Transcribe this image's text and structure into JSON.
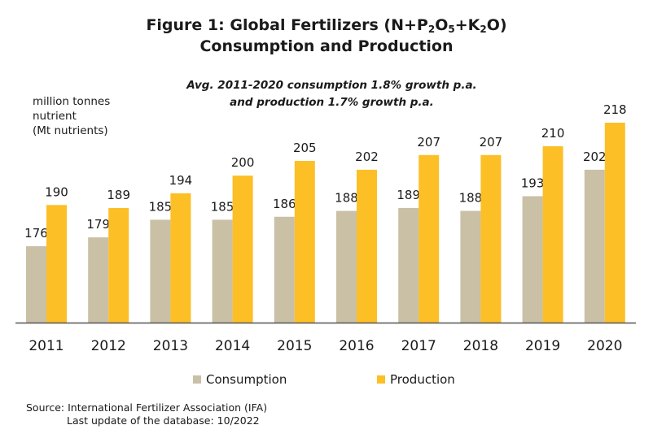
{
  "title": {
    "line1_prefix": "Figure 1: Global Fertilizers (N+P",
    "sub1": "2",
    "mid1": "O",
    "sub2": "5",
    "mid2": "+K",
    "sub3": "2",
    "line1_suffix": "O)",
    "line2": "Consumption  and Production"
  },
  "annotation": {
    "line1": "Avg. 2011-2020 consumption  1.8% growth p.a.",
    "line2": "and production 1.7% growth p.a."
  },
  "unit_label": {
    "line1": "million  tonnes",
    "line2": "nutrient",
    "line3": "(Mt nutrients)"
  },
  "chart_data": {
    "type": "bar",
    "categories": [
      "2011",
      "2012",
      "2013",
      "2014",
      "2015",
      "2016",
      "2017",
      "2018",
      "2019",
      "2020"
    ],
    "series": [
      {
        "name": "Consumption",
        "color": "#c9c0a6",
        "values": [
          176,
          179,
          185,
          185,
          186,
          188,
          189,
          188,
          193,
          202
        ]
      },
      {
        "name": "Production",
        "color": "#fdbf26",
        "values": [
          190,
          189,
          194,
          200,
          205,
          202,
          207,
          207,
          210,
          218
        ]
      }
    ],
    "ylim": [
      150,
      220
    ],
    "grid": false,
    "legend_position": "bottom"
  },
  "source": {
    "line1": "Source: International Fertilizer Association (IFA)",
    "line2": "Last update of the database: 10/2022"
  }
}
